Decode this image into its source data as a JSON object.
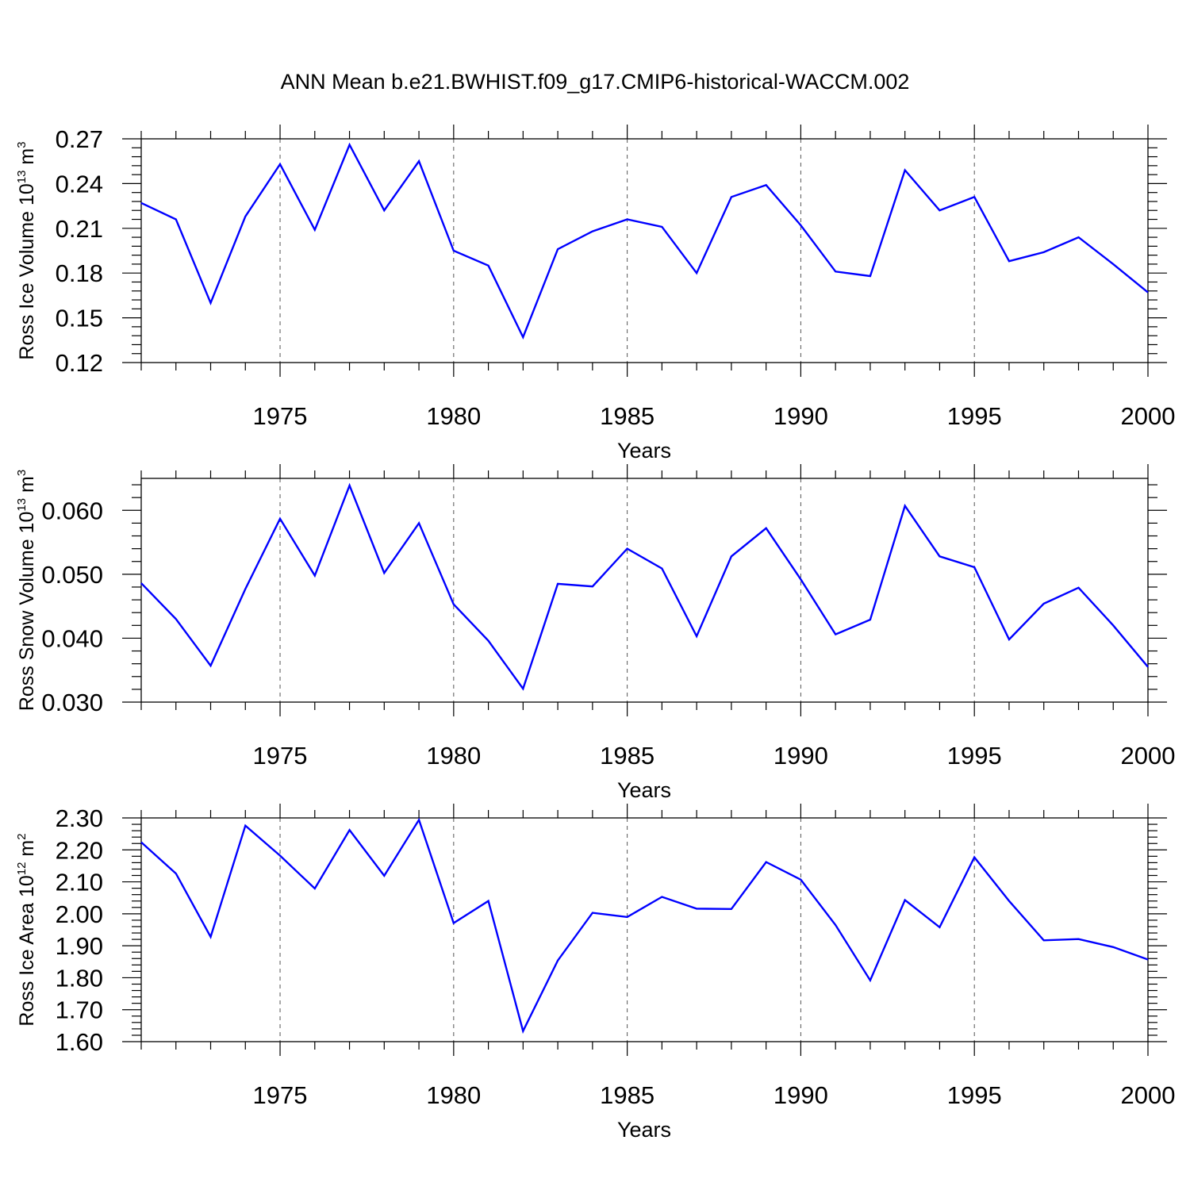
{
  "title": "ANN Mean b.e21.BWHIST.f09_g17.CMIP6-historical-WACCM.002",
  "colors": {
    "series": "#0000ff",
    "axis": "#000000",
    "grid": "#555555"
  },
  "chart_data": [
    {
      "type": "line",
      "ylabel": {
        "text": "Ross Ice Volume 10",
        "exp": "13",
        "unit": " m",
        "unit_exp": "3"
      },
      "xlabel": "Years",
      "xlim": [
        1971,
        2000
      ],
      "ylim": [
        0.12,
        0.27
      ],
      "yticks": [
        "0.12",
        "0.15",
        "0.18",
        "0.21",
        "0.24",
        "0.27"
      ],
      "xticks": [
        "1975",
        "1980",
        "1985",
        "1990",
        "1995",
        "2000"
      ],
      "grid": "vertical dashed at major x ticks",
      "x": [
        1971,
        1972,
        1973,
        1974,
        1975,
        1976,
        1977,
        1978,
        1979,
        1980,
        1981,
        1982,
        1983,
        1984,
        1985,
        1986,
        1987,
        1988,
        1989,
        1990,
        1991,
        1992,
        1993,
        1994,
        1995,
        1996,
        1997,
        1998,
        1999,
        2000
      ],
      "y": [
        0.227,
        0.216,
        0.16,
        0.218,
        0.253,
        0.209,
        0.266,
        0.222,
        0.255,
        0.195,
        0.185,
        0.137,
        0.196,
        0.208,
        0.216,
        0.211,
        0.18,
        0.231,
        0.239,
        0.212,
        0.181,
        0.178,
        0.249,
        0.222,
        0.231,
        0.188,
        0.194,
        0.204,
        0.186,
        0.167
      ]
    },
    {
      "type": "line",
      "ylabel": {
        "text": "Ross Snow Volume 10",
        "exp": "13",
        "unit": " m",
        "unit_exp": "3"
      },
      "xlabel": "Years",
      "xlim": [
        1971,
        2000
      ],
      "ylim": [
        0.03,
        0.065
      ],
      "yticks": [
        "0.030",
        "0.040",
        "0.050",
        "0.060"
      ],
      "xticks": [
        "1975",
        "1980",
        "1985",
        "1990",
        "1995",
        "2000"
      ],
      "grid": "vertical dashed at major x ticks",
      "x": [
        1971,
        1972,
        1973,
        1974,
        1975,
        1976,
        1977,
        1978,
        1979,
        1980,
        1981,
        1982,
        1983,
        1984,
        1985,
        1986,
        1987,
        1988,
        1989,
        1990,
        1991,
        1992,
        1993,
        1994,
        1995,
        1996,
        1997,
        1998,
        1999,
        2000
      ],
      "y": [
        0.0486,
        0.043,
        0.0357,
        0.0477,
        0.0587,
        0.0498,
        0.0639,
        0.0502,
        0.058,
        0.0453,
        0.0396,
        0.0321,
        0.0485,
        0.0481,
        0.054,
        0.0509,
        0.0403,
        0.0528,
        0.0572,
        0.0492,
        0.0406,
        0.0429,
        0.0607,
        0.0528,
        0.0511,
        0.0398,
        0.0454,
        0.0479,
        0.042,
        0.0355
      ]
    },
    {
      "type": "line",
      "ylabel": {
        "text": "Ross Ice Area 10",
        "exp": "12",
        "unit": " m",
        "unit_exp": "2"
      },
      "xlabel": "Years",
      "xlim": [
        1971,
        2000
      ],
      "ylim": [
        1.6,
        2.3
      ],
      "yticks": [
        "1.60",
        "1.70",
        "1.80",
        "1.90",
        "2.00",
        "2.10",
        "2.20",
        "2.30"
      ],
      "xticks": [
        "1975",
        "1980",
        "1985",
        "1990",
        "1995",
        "2000"
      ],
      "grid": "vertical dashed at major x ticks",
      "x": [
        1971,
        1972,
        1973,
        1974,
        1975,
        1976,
        1977,
        1978,
        1979,
        1980,
        1981,
        1982,
        1983,
        1984,
        1985,
        1986,
        1987,
        1988,
        1989,
        1990,
        1991,
        1992,
        1993,
        1994,
        1995,
        1996,
        1997,
        1998,
        1999,
        2000
      ],
      "y": [
        2.224,
        2.126,
        1.928,
        2.276,
        2.182,
        2.079,
        2.262,
        2.119,
        2.294,
        1.971,
        2.04,
        1.633,
        1.854,
        2.003,
        1.99,
        2.053,
        2.016,
        2.015,
        2.162,
        2.107,
        1.965,
        1.792,
        2.043,
        1.958,
        2.177,
        2.04,
        1.917,
        1.921,
        1.896,
        1.857
      ]
    }
  ]
}
